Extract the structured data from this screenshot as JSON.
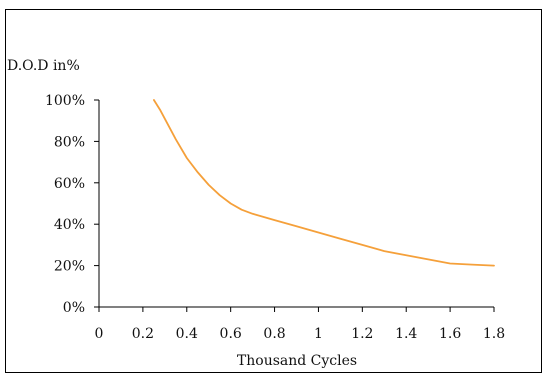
{
  "chart_data": {
    "type": "line",
    "title": "",
    "ylabel": "D.O.D in%",
    "xlabel": "Thousand Cycles",
    "xlim": [
      0,
      1.8
    ],
    "ylim": [
      0,
      100
    ],
    "x_ticks": [
      0,
      0.2,
      0.4,
      0.6,
      0.8,
      1,
      1.2,
      1.4,
      1.6,
      1.8
    ],
    "x_tick_labels": [
      "0",
      "0.2",
      "0.4",
      "0.6",
      "0.8",
      "1",
      "1.2",
      "1.4",
      "1.6",
      "1.8"
    ],
    "y_ticks": [
      0,
      20,
      40,
      60,
      80,
      100
    ],
    "y_tick_labels": [
      "0%",
      "20%",
      "40%",
      "60%",
      "80%",
      "100%"
    ],
    "grid": false,
    "legend": "none",
    "series": [
      {
        "color": "#f5a03a",
        "x": [
          0.25,
          0.28,
          0.31,
          0.35,
          0.4,
          0.45,
          0.5,
          0.55,
          0.6,
          0.65,
          0.7,
          0.8,
          0.9,
          1.0,
          1.1,
          1.2,
          1.3,
          1.4,
          1.5,
          1.6,
          1.7,
          1.8
        ],
        "y": [
          100,
          95,
          89,
          81,
          72,
          65,
          59,
          54,
          50,
          47,
          45,
          42,
          39,
          36,
          33,
          30,
          27,
          25,
          23,
          21,
          20.5,
          20
        ]
      }
    ]
  }
}
